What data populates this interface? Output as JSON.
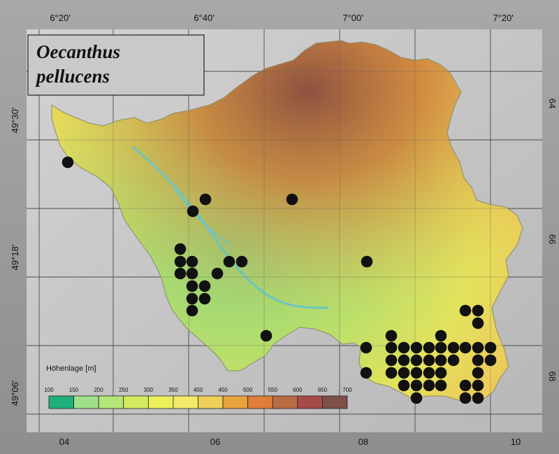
{
  "title": {
    "line1": "Oecanthus",
    "line2": "pellucens"
  },
  "top_ticks": [
    "6°20'",
    "6°40'",
    "7°00'",
    "7°20'"
  ],
  "left_ticks": [
    "49°30'",
    "49°18'",
    "49°06'"
  ],
  "bottom_ticks": [
    "04",
    "06",
    "08",
    "10"
  ],
  "right_ticks": [
    "64",
    "66",
    "68"
  ],
  "legend": {
    "title": "Höhenlage [m]",
    "values": [
      "100",
      "150",
      "200",
      "250",
      "300",
      "350",
      "400",
      "450",
      "500",
      "550",
      "600",
      "650",
      "700"
    ],
    "colors": [
      "#1fb07a",
      "#9ee08a",
      "#b4e676",
      "#d3ea5e",
      "#ecef5a",
      "#f4e968",
      "#eecf57",
      "#e8a43c",
      "#e07d38",
      "#b86c42",
      "#a64a48",
      "#7e5049",
      "#6a2c3c"
    ]
  },
  "occurrence_dots": [
    [
      97,
      232
    ],
    [
      294,
      285
    ],
    [
      418,
      285
    ],
    [
      276,
      302
    ],
    [
      258,
      356
    ],
    [
      258,
      374
    ],
    [
      275,
      374
    ],
    [
      328,
      374
    ],
    [
      346,
      374
    ],
    [
      525,
      374
    ],
    [
      258,
      391
    ],
    [
      275,
      391
    ],
    [
      311,
      391
    ],
    [
      275,
      409
    ],
    [
      293,
      409
    ],
    [
      275,
      427
    ],
    [
      293,
      427
    ],
    [
      275,
      444
    ],
    [
      666,
      444
    ],
    [
      684,
      444
    ],
    [
      684,
      462
    ],
    [
      381,
      480
    ],
    [
      560,
      480
    ],
    [
      631,
      480
    ],
    [
      524,
      497
    ],
    [
      560,
      497
    ],
    [
      578,
      497
    ],
    [
      596,
      497
    ],
    [
      614,
      497
    ],
    [
      631,
      497
    ],
    [
      649,
      497
    ],
    [
      666,
      497
    ],
    [
      684,
      497
    ],
    [
      702,
      497
    ],
    [
      560,
      515
    ],
    [
      578,
      515
    ],
    [
      596,
      515
    ],
    [
      614,
      515
    ],
    [
      631,
      515
    ],
    [
      649,
      515
    ],
    [
      684,
      515
    ],
    [
      702,
      515
    ],
    [
      524,
      533
    ],
    [
      560,
      533
    ],
    [
      578,
      533
    ],
    [
      596,
      533
    ],
    [
      614,
      533
    ],
    [
      631,
      533
    ],
    [
      684,
      533
    ],
    [
      578,
      551
    ],
    [
      596,
      551
    ],
    [
      614,
      551
    ],
    [
      631,
      551
    ],
    [
      666,
      551
    ],
    [
      684,
      551
    ],
    [
      596,
      569
    ],
    [
      666,
      569
    ],
    [
      684,
      569
    ]
  ]
}
